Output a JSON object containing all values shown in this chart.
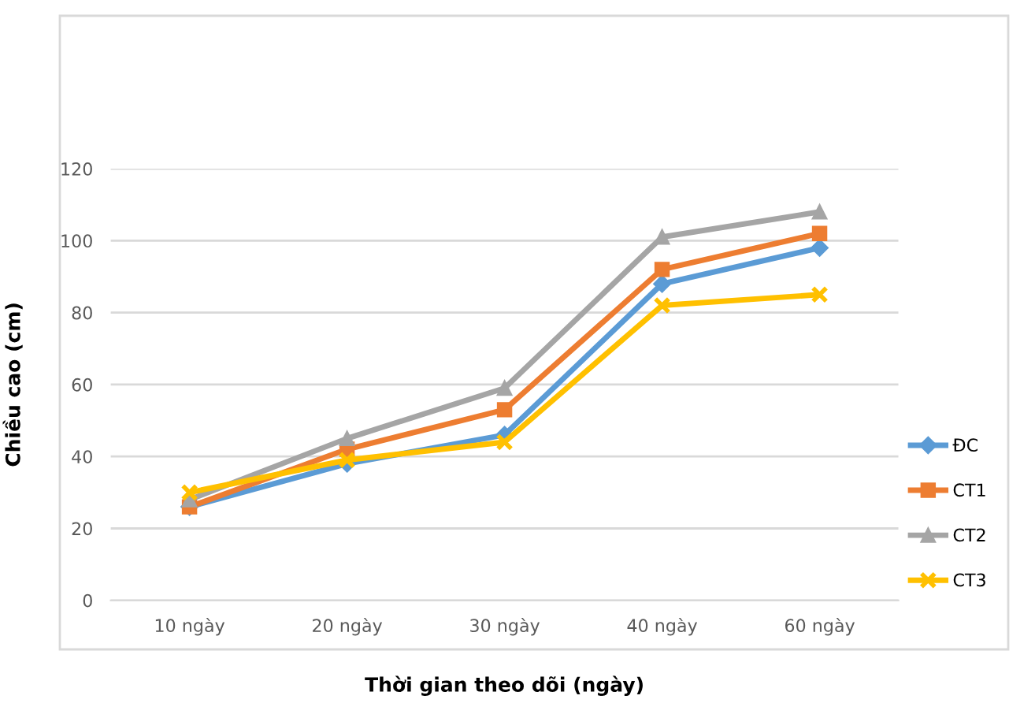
{
  "chart_data": {
    "type": "line",
    "xlabel": "Thời gian theo dõi (ngày)",
    "ylabel": "Chiều cao (cm)",
    "categories": [
      "10 ngày",
      "20 ngày",
      "30 ngày",
      "40 ngày",
      "60 ngày"
    ],
    "series": [
      {
        "name": "ĐC",
        "color": "#5b9bd5",
        "marker": "diamond",
        "values": [
          26,
          38,
          46,
          88,
          98
        ]
      },
      {
        "name": "CT1",
        "color": "#ed7d31",
        "marker": "square",
        "values": [
          26,
          42,
          53,
          92,
          102
        ]
      },
      {
        "name": "CT2",
        "color": "#a5a5a5",
        "marker": "triangle",
        "values": [
          28,
          45,
          59,
          101,
          108
        ]
      },
      {
        "name": "CT3",
        "color": "#ffc000",
        "marker": "cross",
        "values": [
          30,
          39,
          44,
          82,
          85
        ]
      }
    ],
    "ylim": [
      0,
      120
    ],
    "yticks": [
      0,
      20,
      40,
      60,
      80,
      100,
      120
    ],
    "grid": "y",
    "legend": "right",
    "line_style": "solid"
  }
}
